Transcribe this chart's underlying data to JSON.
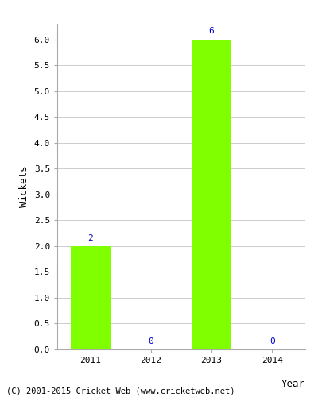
{
  "categories": [
    "2011",
    "2012",
    "2013",
    "2014"
  ],
  "values": [
    2,
    0,
    6,
    0
  ],
  "bar_color": "#7FFF00",
  "bar_edge_color": "#7FFF00",
  "xlabel": "Year",
  "ylabel": "Wickets",
  "ylim": [
    0,
    6.3
  ],
  "yticks": [
    0.0,
    0.5,
    1.0,
    1.5,
    2.0,
    2.5,
    3.0,
    3.5,
    4.0,
    4.5,
    5.0,
    5.5,
    6.0
  ],
  "label_color": "#0000CC",
  "label_fontsize": 8,
  "axis_label_fontsize": 9,
  "tick_fontsize": 8,
  "footer_text": "(C) 2001-2015 Cricket Web (www.cricketweb.net)",
  "footer_fontsize": 7.5,
  "background_color": "#ffffff",
  "grid_color": "#cccccc",
  "bar_width": 0.65
}
